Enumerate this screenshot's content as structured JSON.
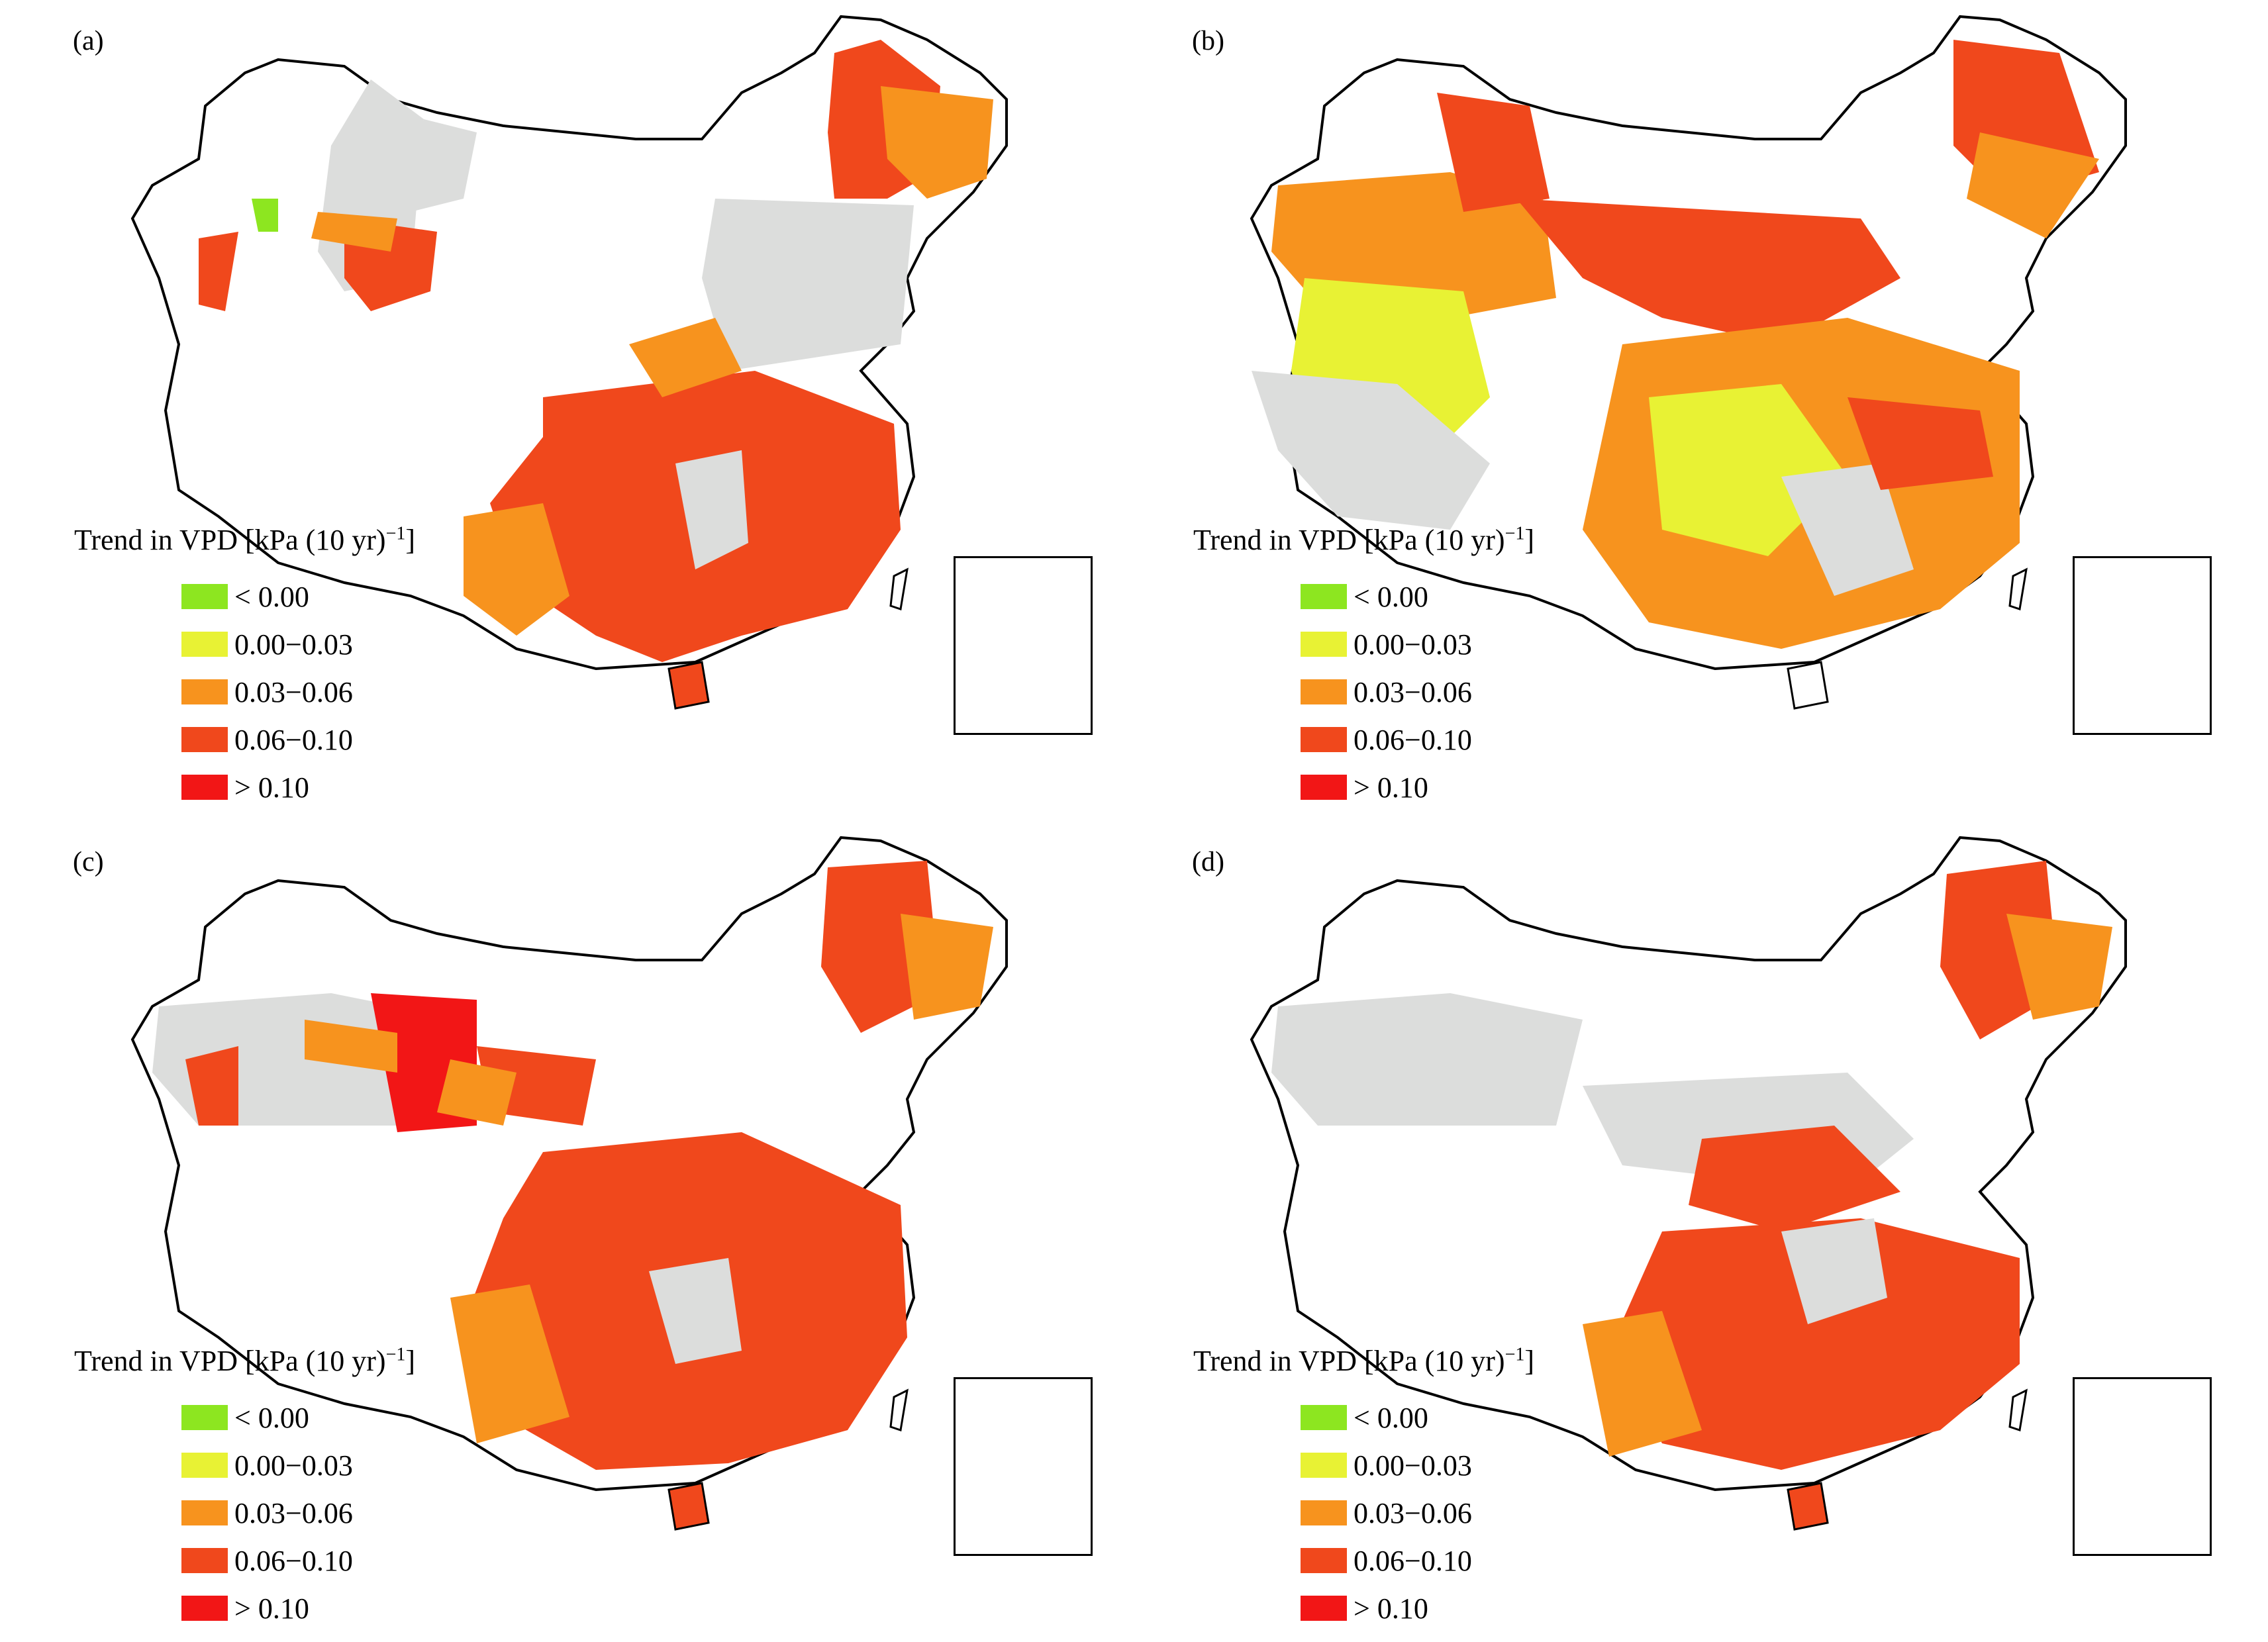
{
  "colors": {
    "lt0": "#8de620",
    "p0003": "#e8f234",
    "p0306": "#f7931e",
    "p0610": "#f0481c",
    "gt10": "#f21616",
    "nodata": "#dcdddc",
    "border": "#000000"
  },
  "legend": {
    "title_prefix": "Trend in VPD [kPa (10 yr)",
    "title_sup": "−1",
    "title_suffix": "]",
    "items": [
      {
        "label": "< 0.00",
        "color": "#8de620"
      },
      {
        "label": "0.00−0.03",
        "color": "#e8f234"
      },
      {
        "label": "0.03−0.06",
        "color": "#f7931e"
      },
      {
        "label": "0.06−0.10",
        "color": "#f0481c"
      },
      {
        "label": "> 0.10",
        "color": "#f21616"
      }
    ]
  },
  "panels": [
    {
      "label": "(a)"
    },
    {
      "label": "(b)"
    },
    {
      "label": "(c)"
    },
    {
      "label": "(d)"
    }
  ]
}
